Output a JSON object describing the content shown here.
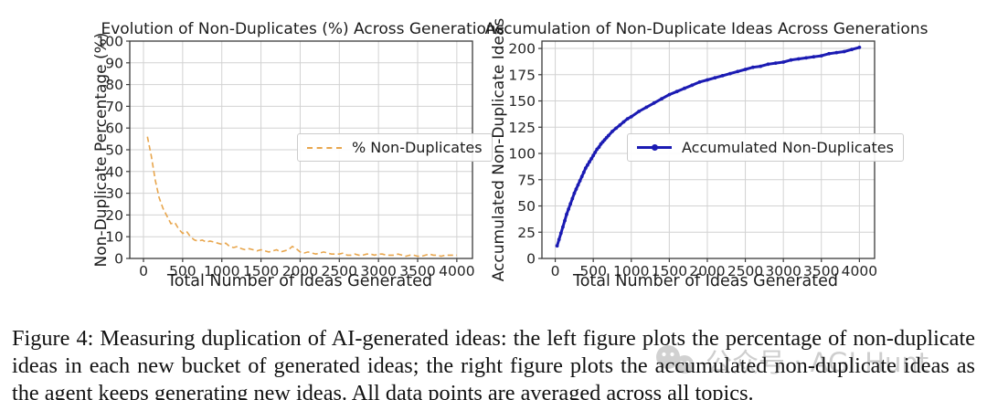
{
  "figure": {
    "caption": "Figure 4: Measuring duplication of AI-generated ideas: the left figure plots the percentage of non-duplicate ideas in each new bucket of generated ideas; the right figure plots the accumulated non-duplicate ideas as the agent keeps generating new ideas. All data points are averaged across all topics."
  },
  "watermark": {
    "text": "公众号 · AGI Hunt",
    "icon": "wechat-logo"
  },
  "colors": {
    "orange_line": "#e8a64d",
    "blue_line": "#1b1bb3",
    "grid": "#d2d2d2",
    "spine": "#3a3a3a",
    "tick_text": "#262626"
  },
  "chart_data": [
    {
      "type": "line",
      "title": "Evolution of Non-Duplicates (%) Across Generations",
      "xlabel": "Total Number of Ideas Generated",
      "ylabel": "Non-Duplicate Percentage (%)",
      "xlim": [
        -175,
        4200
      ],
      "ylim": [
        0,
        100
      ],
      "xticks": [
        0,
        500,
        1000,
        1500,
        2000,
        2500,
        3000,
        3500,
        4000
      ],
      "yticks": [
        0,
        10,
        20,
        30,
        40,
        50,
        60,
        70,
        80,
        90,
        100
      ],
      "grid": true,
      "legend": {
        "label": "% Non-Duplicates",
        "position": "center right"
      },
      "series": [
        {
          "name": "% Non-Duplicates",
          "style": "dashed",
          "color_key": "orange_line",
          "points": [
            [
              50,
              56
            ],
            [
              100,
              47
            ],
            [
              150,
              36
            ],
            [
              200,
              28
            ],
            [
              250,
              23
            ],
            [
              300,
              19.5
            ],
            [
              350,
              16
            ],
            [
              400,
              16.5
            ],
            [
              450,
              13.5
            ],
            [
              500,
              11.5
            ],
            [
              550,
              12.5
            ],
            [
              600,
              10
            ],
            [
              650,
              8.5
            ],
            [
              700,
              8
            ],
            [
              750,
              8.5
            ],
            [
              800,
              7.5
            ],
            [
              850,
              8
            ],
            [
              900,
              7.5
            ],
            [
              950,
              7
            ],
            [
              1000,
              6.5
            ],
            [
              1050,
              7
            ],
            [
              1100,
              5.5
            ],
            [
              1150,
              5
            ],
            [
              1200,
              5.5
            ],
            [
              1250,
              4.5
            ],
            [
              1300,
              4
            ],
            [
              1350,
              4.5
            ],
            [
              1400,
              4
            ],
            [
              1450,
              3.5
            ],
            [
              1500,
              4
            ],
            [
              1550,
              3.5
            ],
            [
              1600,
              3
            ],
            [
              1650,
              3.5
            ],
            [
              1700,
              4
            ],
            [
              1750,
              3
            ],
            [
              1800,
              3.5
            ],
            [
              1850,
              4
            ],
            [
              1900,
              5.5
            ],
            [
              1950,
              4.5
            ],
            [
              2000,
              3
            ],
            [
              2050,
              2.5
            ],
            [
              2100,
              3
            ],
            [
              2150,
              2.5
            ],
            [
              2200,
              2
            ],
            [
              2250,
              2.5
            ],
            [
              2300,
              3
            ],
            [
              2350,
              2.5
            ],
            [
              2400,
              2
            ],
            [
              2450,
              2
            ],
            [
              2500,
              2
            ],
            [
              2550,
              2.5
            ],
            [
              2600,
              1.5
            ],
            [
              2650,
              1.5
            ],
            [
              2700,
              2
            ],
            [
              2750,
              1.5
            ],
            [
              2800,
              1.5
            ],
            [
              2850,
              2
            ],
            [
              2900,
              2
            ],
            [
              2950,
              1.5
            ],
            [
              3000,
              2
            ],
            [
              3050,
              2
            ],
            [
              3100,
              1.5
            ],
            [
              3150,
              1.5
            ],
            [
              3200,
              1.5
            ],
            [
              3250,
              2
            ],
            [
              3300,
              1.5
            ],
            [
              3350,
              1
            ],
            [
              3400,
              1.5
            ],
            [
              3450,
              1.5
            ],
            [
              3500,
              1
            ],
            [
              3550,
              1
            ],
            [
              3600,
              1.5
            ],
            [
              3650,
              2
            ],
            [
              3700,
              1.5
            ],
            [
              3750,
              1.5
            ],
            [
              3800,
              1
            ],
            [
              3850,
              1.5
            ],
            [
              3900,
              1.5
            ],
            [
              3950,
              1.5
            ],
            [
              4000,
              1.5
            ]
          ]
        }
      ]
    },
    {
      "type": "line",
      "title": "Accumulation of Non-Duplicate Ideas Across Generations",
      "xlabel": "Total Number of Ideas Generated",
      "ylabel": "Accumulated Non-Duplicate Ideas",
      "xlim": [
        -175,
        4200
      ],
      "ylim": [
        0,
        207
      ],
      "xticks": [
        0,
        500,
        1000,
        1500,
        2000,
        2500,
        3000,
        3500,
        4000
      ],
      "yticks": [
        0,
        25,
        50,
        75,
        100,
        125,
        150,
        175,
        200
      ],
      "grid": true,
      "legend": {
        "label": "Accumulated Non-Duplicates",
        "position": "center"
      },
      "series": [
        {
          "name": "Accumulated Non-Duplicates",
          "style": "solid-marker",
          "color_key": "blue_line",
          "points": [
            [
              25,
              12
            ],
            [
              50,
              18
            ],
            [
              75,
              24
            ],
            [
              100,
              30
            ],
            [
              125,
              36
            ],
            [
              150,
              42
            ],
            [
              175,
              47
            ],
            [
              200,
              52
            ],
            [
              225,
              57
            ],
            [
              250,
              62
            ],
            [
              275,
              66
            ],
            [
              300,
              70
            ],
            [
              325,
              74
            ],
            [
              350,
              78
            ],
            [
              375,
              82
            ],
            [
              400,
              86
            ],
            [
              425,
              89
            ],
            [
              450,
              92
            ],
            [
              475,
              95
            ],
            [
              500,
              98
            ],
            [
              525,
              101
            ],
            [
              550,
              104
            ],
            [
              575,
              106
            ],
            [
              600,
              109
            ],
            [
              625,
              111
            ],
            [
              650,
              113
            ],
            [
              675,
              115
            ],
            [
              700,
              117
            ],
            [
              750,
              121
            ],
            [
              800,
              124
            ],
            [
              850,
              127
            ],
            [
              900,
              130
            ],
            [
              950,
              133
            ],
            [
              1000,
              135
            ],
            [
              1100,
              140
            ],
            [
              1200,
              144
            ],
            [
              1300,
              148
            ],
            [
              1400,
              152
            ],
            [
              1500,
              156
            ],
            [
              1600,
              159
            ],
            [
              1700,
              162
            ],
            [
              1800,
              165
            ],
            [
              1900,
              168
            ],
            [
              2000,
              170
            ],
            [
              2100,
              172
            ],
            [
              2200,
              174
            ],
            [
              2300,
              176
            ],
            [
              2400,
              178
            ],
            [
              2500,
              180
            ],
            [
              2600,
              182
            ],
            [
              2700,
              183
            ],
            [
              2800,
              185
            ],
            [
              2900,
              186
            ],
            [
              3000,
              187
            ],
            [
              3100,
              189
            ],
            [
              3200,
              190
            ],
            [
              3300,
              191
            ],
            [
              3400,
              192
            ],
            [
              3500,
              193
            ],
            [
              3600,
              195
            ],
            [
              3700,
              196
            ],
            [
              3800,
              197
            ],
            [
              3900,
              199
            ],
            [
              4000,
              201
            ]
          ]
        }
      ]
    }
  ]
}
